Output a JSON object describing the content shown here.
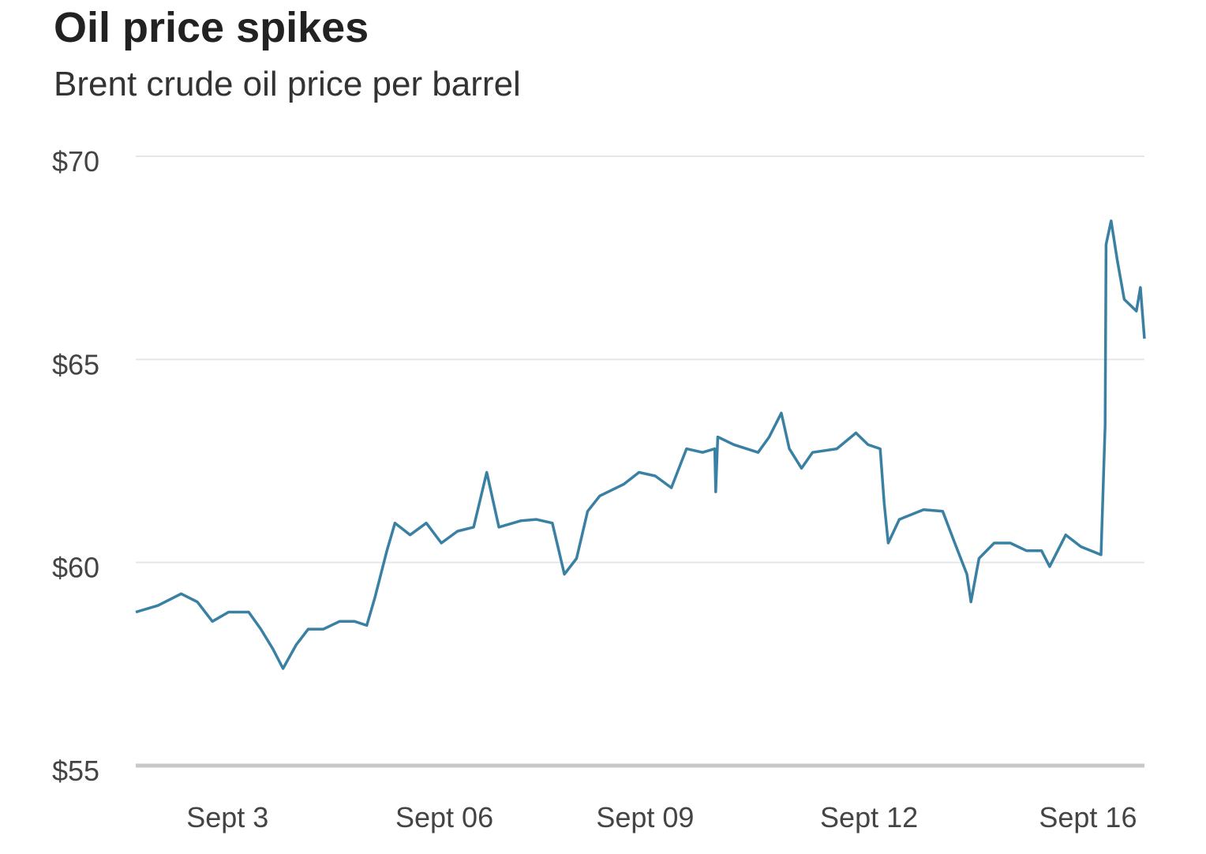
{
  "chart_data": {
    "type": "line",
    "title": "Oil price spikes",
    "subtitle": "Brent crude oil price per barrel",
    "xlabel": "",
    "ylabel": "",
    "ylim": [
      55,
      70
    ],
    "xlim": [
      0,
      100
    ],
    "grid": true,
    "color": "#3a80a3",
    "y_ticks": [
      {
        "value": 55,
        "label": "$55"
      },
      {
        "value": 60,
        "label": "$60"
      },
      {
        "value": 65,
        "label": "$65"
      },
      {
        "value": 70,
        "label": "$70"
      }
    ],
    "x_ticks": [
      {
        "value": 9.1,
        "label": "Sept 3"
      },
      {
        "value": 30.6,
        "label": "Sept 06"
      },
      {
        "value": 50.5,
        "label": "Sept 09"
      },
      {
        "value": 72.7,
        "label": "Sept 12"
      },
      {
        "value": 94.4,
        "label": "Sept 16"
      }
    ],
    "series": [
      {
        "name": "Brent crude",
        "points": [
          [
            0,
            58.78
          ],
          [
            2.2,
            58.94
          ],
          [
            4.5,
            59.23
          ],
          [
            6.1,
            59.03
          ],
          [
            7.6,
            58.55
          ],
          [
            9.2,
            58.78
          ],
          [
            11.2,
            58.78
          ],
          [
            12.4,
            58.36
          ],
          [
            13.6,
            57.87
          ],
          [
            14.6,
            57.39
          ],
          [
            15.9,
            57.97
          ],
          [
            17.1,
            58.36
          ],
          [
            18.6,
            58.36
          ],
          [
            20.2,
            58.55
          ],
          [
            21.7,
            58.55
          ],
          [
            22.9,
            58.45
          ],
          [
            23.7,
            59.13
          ],
          [
            24.9,
            60.29
          ],
          [
            25.7,
            60.97
          ],
          [
            27.2,
            60.68
          ],
          [
            28.8,
            60.97
          ],
          [
            30.3,
            60.48
          ],
          [
            31.9,
            60.77
          ],
          [
            33.5,
            60.87
          ],
          [
            34.8,
            62.22
          ],
          [
            36.0,
            60.87
          ],
          [
            38.2,
            61.03
          ],
          [
            39.7,
            61.06
          ],
          [
            41.3,
            60.97
          ],
          [
            42.5,
            59.71
          ],
          [
            43.7,
            60.1
          ],
          [
            44.8,
            61.26
          ],
          [
            46.0,
            61.64
          ],
          [
            48.4,
            61.93
          ],
          [
            49.9,
            62.22
          ],
          [
            51.5,
            62.13
          ],
          [
            53.1,
            61.84
          ],
          [
            54.6,
            62.8
          ],
          [
            56.2,
            62.71
          ],
          [
            57.4,
            62.8
          ],
          [
            57.5,
            61.74
          ],
          [
            57.7,
            63.09
          ],
          [
            59.3,
            62.9
          ],
          [
            61.7,
            62.71
          ],
          [
            62.8,
            63.09
          ],
          [
            64.0,
            63.68
          ],
          [
            64.8,
            62.8
          ],
          [
            66.0,
            62.32
          ],
          [
            67.1,
            62.71
          ],
          [
            69.5,
            62.8
          ],
          [
            71.4,
            63.19
          ],
          [
            72.6,
            62.9
          ],
          [
            73.8,
            62.8
          ],
          [
            74.2,
            61.45
          ],
          [
            74.6,
            60.48
          ],
          [
            75.7,
            61.06
          ],
          [
            78.1,
            61.3
          ],
          [
            80.0,
            61.26
          ],
          [
            81.2,
            60.48
          ],
          [
            82.4,
            59.71
          ],
          [
            82.8,
            59.03
          ],
          [
            83.6,
            60.1
          ],
          [
            85.1,
            60.48
          ],
          [
            86.7,
            60.48
          ],
          [
            88.3,
            60.29
          ],
          [
            89.8,
            60.29
          ],
          [
            90.6,
            59.9
          ],
          [
            92.2,
            60.68
          ],
          [
            93.7,
            60.39
          ],
          [
            95.7,
            60.19
          ],
          [
            96.1,
            63.38
          ],
          [
            96.2,
            67.83
          ],
          [
            96.7,
            68.41
          ],
          [
            97.3,
            67.45
          ],
          [
            98.0,
            66.48
          ],
          [
            99.2,
            66.19
          ],
          [
            99.6,
            66.77
          ],
          [
            100,
            65.51
          ]
        ]
      }
    ]
  }
}
